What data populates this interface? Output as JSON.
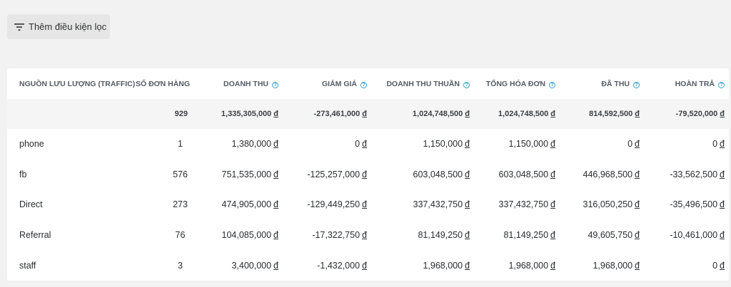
{
  "filter": {
    "label": "Thêm điều kiện lọc",
    "icon": "filter-icon"
  },
  "table": {
    "columns": [
      {
        "label": "NGUỒN LƯU LƯỢNG (TRAFFIC)",
        "help": false
      },
      {
        "label": "SỐ ĐƠN HÀNG",
        "help": false
      },
      {
        "label": "DOANH THU",
        "help": true
      },
      {
        "label": "GIẢM GIÁ",
        "help": true
      },
      {
        "label": "DOANH THU THUẦN",
        "help": true
      },
      {
        "label": "TỔNG HÓA ĐƠN",
        "help": true
      },
      {
        "label": "ĐÃ THU",
        "help": true
      },
      {
        "label": "HOÀN TRẢ",
        "help": true
      }
    ],
    "currency": "đ",
    "totals": [
      "",
      "929",
      "1,335,305,000",
      "-273,461,000",
      "1,024,748,500",
      "1,024,748,500",
      "814,592,500",
      "-79,520,000"
    ],
    "rows": [
      [
        "phone",
        "1",
        "1,380,000",
        "0",
        "1,150,000",
        "1,150,000",
        "0",
        "0"
      ],
      [
        "fb",
        "576",
        "751,535,000",
        "-125,257,000",
        "603,048,500",
        "603,048,500",
        "446,968,500",
        "-33,562,500"
      ],
      [
        "Direct",
        "273",
        "474,905,000",
        "-129,449,250",
        "337,432,750",
        "337,432,750",
        "316,050,250",
        "-35,496,500"
      ],
      [
        "Referral",
        "76",
        "104,085,000",
        "-17,322,750",
        "81,149,250",
        "81,149,250",
        "49,605,750",
        "-10,461,000"
      ],
      [
        "staff",
        "3",
        "3,400,000",
        "-1,432,000",
        "1,968,000",
        "1,968,000",
        "1,968,000",
        "0"
      ]
    ]
  }
}
